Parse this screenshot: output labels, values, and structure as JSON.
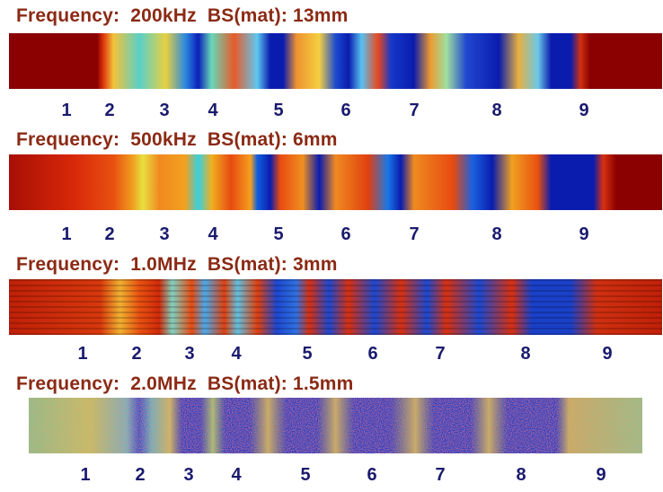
{
  "panels": [
    {
      "title": "Frequency:  200kHz  BS(mat): 13mm",
      "labels": [
        "1",
        "2",
        "3",
        "4",
        "5",
        "6",
        "7",
        "8",
        "9"
      ]
    },
    {
      "title": "Frequency:  500kHz  BS(mat): 6mm",
      "labels": [
        "1",
        "2",
        "3",
        "4",
        "5",
        "6",
        "7",
        "8",
        "9"
      ]
    },
    {
      "title": "Frequency:  1.0MHz  BS(mat): 3mm",
      "labels": [
        "1",
        "2",
        "3",
        "4",
        "5",
        "6",
        "7",
        "8",
        "9"
      ]
    },
    {
      "title": "Frequency:  2.0MHz  BS(mat): 1.5mm",
      "labels": [
        "1",
        "2",
        "3",
        "4",
        "5",
        "6",
        "7",
        "8",
        "9"
      ]
    }
  ],
  "colors": {
    "title": "#8b2a14",
    "label": "#1a1a6e",
    "hot": "#8b0000",
    "cold": "#001a9e"
  }
}
